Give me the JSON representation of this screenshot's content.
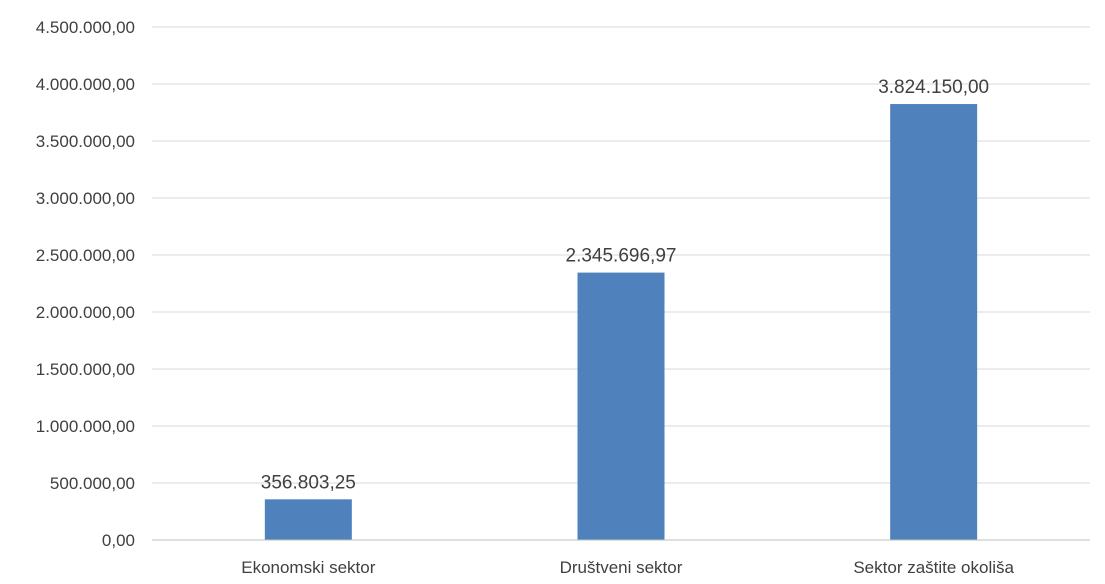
{
  "chart_data": {
    "type": "bar",
    "title": "",
    "xlabel": "",
    "ylabel": "",
    "categories": [
      "Ekonomski sektor",
      "Društveni sektor",
      "Sektor zaštite okoliša"
    ],
    "values": [
      356803.25,
      2345696.97,
      3824150.0
    ],
    "value_labels": [
      "356.803,25",
      "2.345.696,97",
      "3.824.150,00"
    ],
    "ylim": [
      0,
      4500000
    ],
    "ytick_values": [
      0,
      500000,
      1000000,
      1500000,
      2000000,
      2500000,
      3000000,
      3500000,
      4000000,
      4500000
    ],
    "ytick_labels": [
      "0,00",
      "500.000,00",
      "1.000.000,00",
      "1.500.000,00",
      "2.000.000,00",
      "2.500.000,00",
      "3.000.000,00",
      "3.500.000,00",
      "4.000.000,00",
      "4.500.000,00"
    ],
    "grid": true,
    "legend": "none",
    "bar_color": "#4f81bd"
  }
}
